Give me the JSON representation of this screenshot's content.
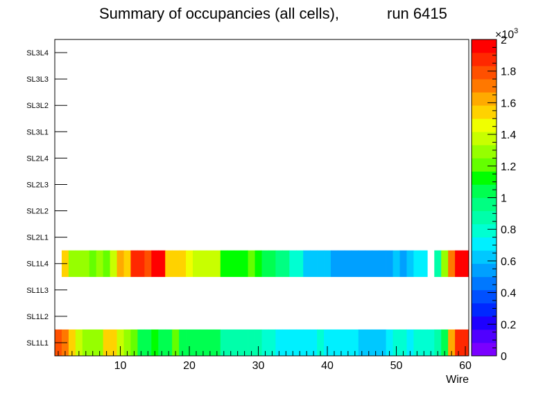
{
  "chart_data": {
    "type": "heatmap",
    "title": "Summary of occupancies (all cells),",
    "run_label": "run 6415",
    "xlabel": "Wire",
    "xlim": [
      0.5,
      60.5
    ],
    "x_ticks": [
      10,
      20,
      30,
      40,
      50,
      60
    ],
    "y_categories": [
      "SL1L1",
      "SL1L2",
      "SL1L3",
      "SL1L4",
      "SL2L1",
      "SL2L2",
      "SL2L3",
      "SL2L4",
      "SL3L1",
      "SL3L2",
      "SL3L3",
      "SL3L4"
    ],
    "z_range": [
      0,
      2000
    ],
    "z_exponent_label": "×10",
    "z_exponent_power": "3",
    "colorbar_ticks": [
      "0",
      "0.2",
      "0.4",
      "0.6",
      "0.8",
      "1",
      "1.2",
      "1.4",
      "1.6",
      "1.8",
      "2"
    ],
    "rows": {
      "SL1L1": {
        "start_wire": 1,
        "values": [
          1780,
          1740,
          1520,
          1400,
          1320,
          1320,
          1320,
          1500,
          1500,
          1400,
          1280,
          1220,
          1020,
          1020,
          1150,
          1020,
          1020,
          1170,
          1050,
          1050,
          1020,
          1020,
          1020,
          1020,
          880,
          880,
          880,
          880,
          880,
          880,
          760,
          800,
          680,
          680,
          680,
          680,
          720,
          720,
          760,
          700,
          700,
          680,
          680,
          680,
          660,
          660,
          660,
          660,
          680,
          760,
          760,
          680,
          800,
          800,
          800,
          890,
          1050,
          1650,
          1900,
          1900
        ]
      },
      "SL1L4": {
        "start_wire": 2,
        "values": [
          1500,
          1320,
          1320,
          1320,
          1200,
          1280,
          1180,
          1340,
          1640,
          1560,
          1880,
          1880,
          1780,
          1950,
          1950,
          1500,
          1500,
          1500,
          1420,
          1350,
          1350,
          1350,
          1350,
          1150,
          1150,
          1150,
          1150,
          1230,
          1150,
          1050,
          1050,
          960,
          960,
          750,
          750,
          620,
          620,
          620,
          620,
          510,
          510,
          510,
          510,
          510,
          510,
          510,
          510,
          510,
          620,
          520,
          620,
          720,
          720,
          null,
          880,
          1290,
          1680,
          1950,
          1950
        ]
      }
    }
  }
}
